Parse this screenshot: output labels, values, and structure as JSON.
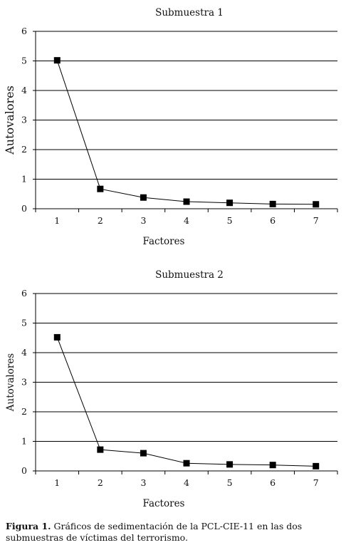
{
  "chart_data": [
    {
      "type": "line",
      "title": "Submuestra 1",
      "xlabel": "Factores",
      "ylabel": "Autovalores",
      "categories": [
        "1",
        "2",
        "3",
        "4",
        "5",
        "6",
        "7"
      ],
      "values": [
        5.02,
        0.67,
        0.38,
        0.24,
        0.2,
        0.16,
        0.15
      ],
      "ylim": [
        0,
        6
      ],
      "yticks": [
        "0",
        "1",
        "2",
        "3",
        "4",
        "5",
        "6"
      ],
      "grid": true,
      "marker": "square"
    },
    {
      "type": "line",
      "title": "Submuestra 2",
      "xlabel": "Factores",
      "ylabel": "Autovalores",
      "categories": [
        "1",
        "2",
        "3",
        "4",
        "5",
        "6",
        "7"
      ],
      "values": [
        4.52,
        0.72,
        0.6,
        0.26,
        0.22,
        0.2,
        0.16
      ],
      "ylim": [
        0,
        6
      ],
      "yticks": [
        "0",
        "1",
        "2",
        "3",
        "4",
        "5",
        "6"
      ],
      "grid": true,
      "marker": "square"
    }
  ],
  "caption": {
    "label": "Figura 1.",
    "text": " Gráficos de sedimentación de la PCL-CIE-11 en las dos submuestras de víctimas del terrorismo."
  }
}
